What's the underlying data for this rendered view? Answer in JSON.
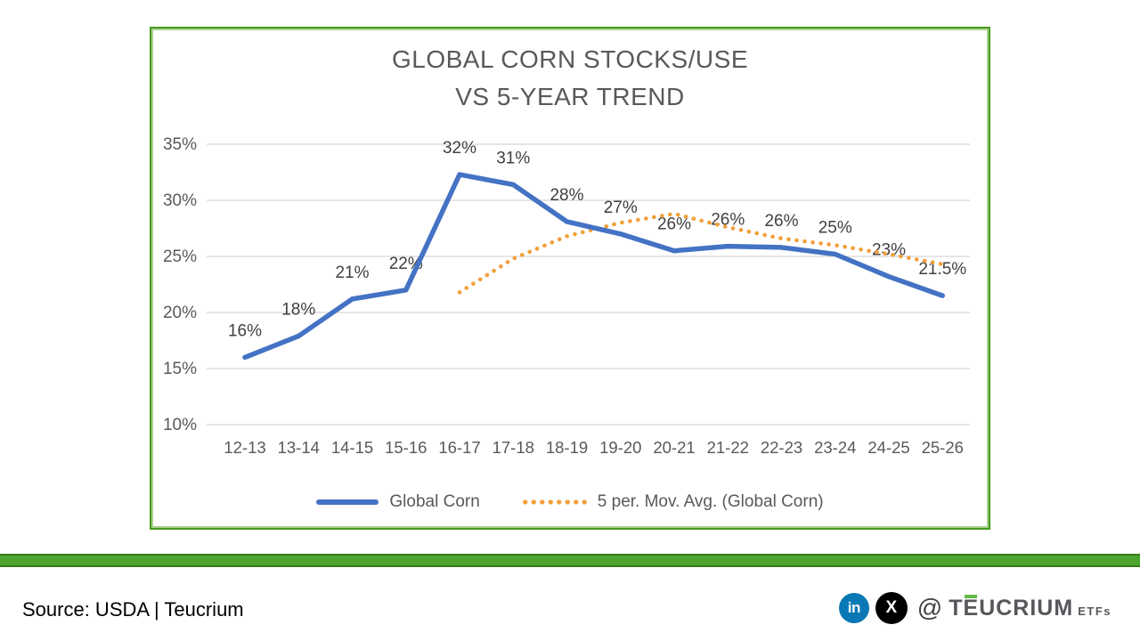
{
  "chart": {
    "title_line1": "GLOBAL CORN STOCKS/USE",
    "title_line2": "VS 5-YEAR TREND",
    "legend": [
      {
        "label": "Global Corn",
        "style": "solid",
        "color": "#4472C4"
      },
      {
        "label": "5 per. Mov. Avg. (Global Corn)",
        "style": "dotted",
        "color": "#F2A03C"
      }
    ]
  },
  "chart_data": {
    "type": "line",
    "title": "GLOBAL CORN STOCKS/USE VS 5-YEAR TREND",
    "categories": [
      "12-13",
      "13-14",
      "14-15",
      "15-16",
      "16-17",
      "17-18",
      "18-19",
      "19-20",
      "20-21",
      "21-22",
      "22-23",
      "23-24",
      "24-25",
      "25-26"
    ],
    "series": [
      {
        "name": "Global Corn",
        "color": "#4472C4",
        "style": "solid",
        "values": [
          16,
          18,
          21,
          22,
          32,
          31,
          28,
          27,
          26,
          26,
          26,
          25,
          23,
          21.5
        ],
        "plot_values": [
          16,
          17.9,
          21.2,
          22,
          32.3,
          31.4,
          28.1,
          27,
          25.5,
          25.9,
          25.8,
          25.2,
          23.2,
          21.5
        ],
        "labels": [
          "16%",
          "18%",
          "21%",
          "22%",
          "32%",
          "31%",
          "28%",
          "27%",
          "26%",
          "26%",
          "26%",
          "25%",
          "23%",
          "21.5%"
        ]
      },
      {
        "name": "5 per. Mov. Avg. (Global Corn)",
        "color": "#F2A03C",
        "style": "dotted",
        "start_index": 4,
        "values": [
          21.8,
          24.8,
          26.8,
          28.0,
          28.8,
          27.6,
          26.6,
          26.0,
          25.2,
          24.3
        ]
      }
    ],
    "y_ticks": [
      {
        "label": "35%",
        "value": 35
      },
      {
        "label": "30%",
        "value": 30
      },
      {
        "label": "25%",
        "value": 25
      },
      {
        "label": "20%",
        "value": 20
      },
      {
        "label": "15%",
        "value": 15
      },
      {
        "label": "10%",
        "value": 10
      }
    ],
    "xlabel": "",
    "ylabel": "",
    "axis": {
      "ymin": 10,
      "ymax": 35
    },
    "grid": true,
    "legend_position": "bottom",
    "label_color": "#404040",
    "axis_color": "#595959",
    "grid_color": "#D6D6D6"
  },
  "footer": {
    "source": "Source: USDA | Teucrium",
    "linkedin_glyph": "in",
    "x_glyph": "X",
    "at": "@",
    "brand_t": "T",
    "brand_e": "E",
    "brand_rest": "UCRIUM",
    "brand_suffix": "ETFs"
  },
  "colors": {
    "card_border": "#479A1F",
    "divider": "#4CA32D",
    "title_text": "#595959",
    "series_blue": "#4472C4",
    "series_orange": "#F2A03C",
    "linkedin_blue": "#0A78B5"
  }
}
